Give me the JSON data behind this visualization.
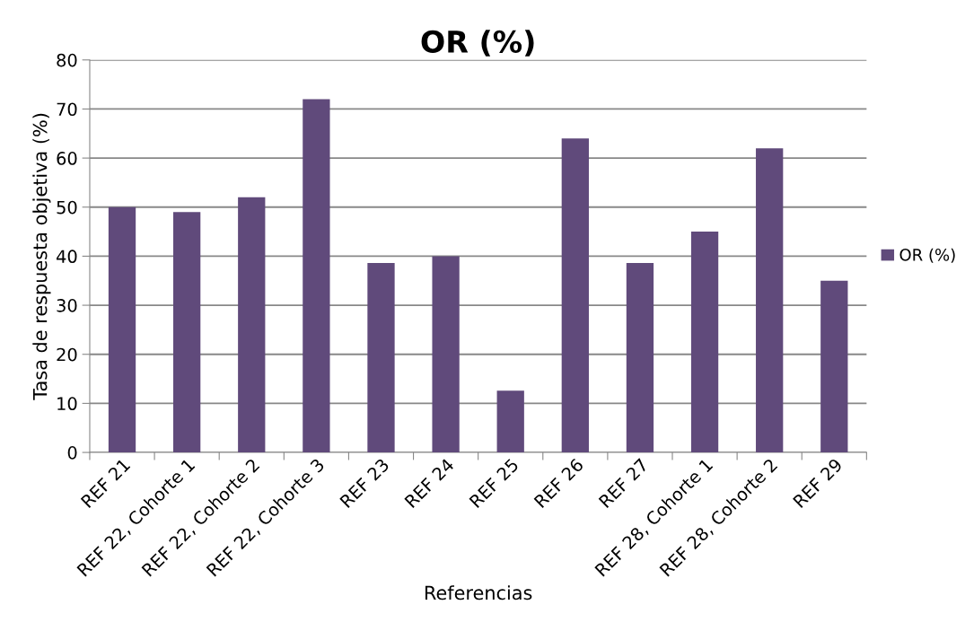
{
  "chart_data": {
    "type": "bar",
    "title": "OR (%)",
    "xlabel": "Referencias",
    "ylabel": "Tasa de respuesta objetiva (%)",
    "categories": [
      "REF 21",
      "REF 22, Cohorte 1",
      "REF 22, Cohorte 2",
      "REF 22, Cohorte 3",
      "REF 23",
      "REF 24",
      "REF 25",
      "REF 26",
      "REF 27",
      "REF 28, Cohorte 1",
      "REF 28, Cohorte 2",
      "REF 29"
    ],
    "series": [
      {
        "name": "OR (%)",
        "color": "#604a7b",
        "values": [
          50,
          49,
          52,
          72,
          38.6,
          40,
          12.6,
          64,
          38.6,
          45,
          62,
          35
        ]
      }
    ],
    "ylim": [
      0,
      80
    ],
    "yticks": [
      0,
      10,
      20,
      30,
      40,
      50,
      60,
      70,
      80
    ],
    "grid": "y",
    "legend": "right"
  }
}
